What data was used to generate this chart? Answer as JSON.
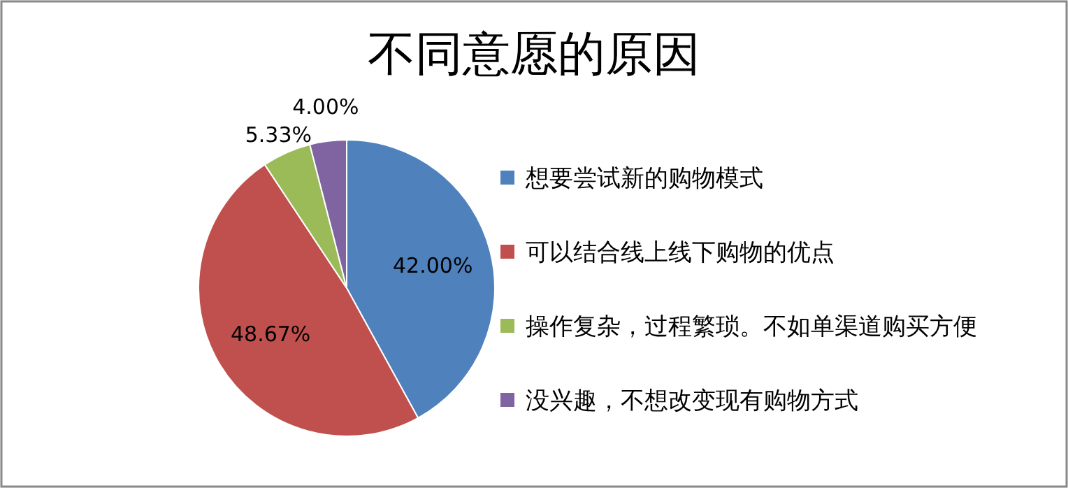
{
  "chart_data": {
    "type": "pie",
    "title": "不同意愿的原因",
    "categories": [
      "想要尝试新的购物模式",
      "可以结合线上线下购物的优点",
      "操作复杂，过程繁琐。不如单渠道购买方便",
      "没兴趣，不想改变现有购物方式"
    ],
    "values": [
      42.0,
      48.67,
      5.33,
      4.0
    ],
    "colors": [
      "#4f81bd",
      "#c0504d",
      "#9bbb59",
      "#8064a2"
    ],
    "value_labels": [
      "42.00%",
      "48.67%",
      "5.33%",
      "4.00%"
    ],
    "legend": "right"
  }
}
